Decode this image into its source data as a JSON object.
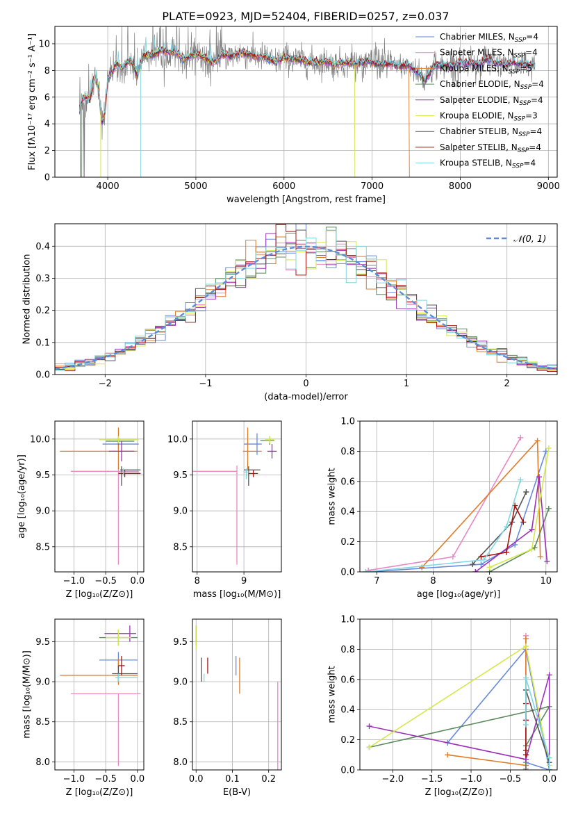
{
  "figure": {
    "title": "PLATE=0923, MJD=52404, FIBERID=0257, z=0.037"
  },
  "colors": {
    "Chabrier MILES": "#6688dd",
    "Salpeter MILES": "#e888c4",
    "Kroupa MILES": "#e07b28",
    "Chabrier ELODIE": "#5b8a5b",
    "Salpeter ELODIE": "#9b30b8",
    "Kroupa ELODIE": "#d4e84a",
    "Chabrier STELIB": "#555555",
    "Salpeter STELIB": "#aa1111",
    "Kroupa STELIB": "#7fd8e0",
    "data": "#808080",
    "normal_curve": "#5b8dd6"
  },
  "chart_data": [
    {
      "type": "line",
      "id": "spectrum",
      "title": "PLATE=0923, MJD=52404, FIBERID=0257, z=0.037",
      "xlabel": "wavelength [Angstrom, rest frame]",
      "ylabel": "Flux [fλ10⁻¹⁷ erg cm⁻² s⁻¹ A⁻¹]",
      "xlim": [
        3400,
        9100
      ],
      "ylim": [
        0,
        11.3
      ],
      "xticks": [
        4000,
        5000,
        6000,
        7000,
        8000,
        9000
      ],
      "yticks": [
        0,
        2,
        4,
        6,
        8,
        10
      ],
      "legend_position": "top-right",
      "legend": [
        {
          "label": "Chabrier MILES, N",
          "sub": "SSP",
          "tail": "=4"
        },
        {
          "label": "Salpeter MILES, N",
          "sub": "SSP",
          "tail": "=4"
        },
        {
          "label": "Kroupa MILES, N",
          "sub": "SSP",
          "tail": "=5"
        },
        {
          "label": "Chabrier ELODIE, N",
          "sub": "SSP",
          "tail": "=4"
        },
        {
          "label": "Salpeter ELODIE, N",
          "sub": "SSP",
          "tail": "=4"
        },
        {
          "label": "Kroupa ELODIE, N",
          "sub": "SSP",
          "tail": "=3"
        },
        {
          "label": "Chabrier STELIB, N",
          "sub": "SSP",
          "tail": "=4"
        },
        {
          "label": "Salpeter STELIB, N",
          "sub": "SSP",
          "tail": "=4"
        },
        {
          "label": "Kroupa STELIB, N",
          "sub": "SSP",
          "tail": "=4"
        }
      ],
      "data_spectrum": {
        "x": [
          3680,
          3720,
          3800,
          3850,
          3900,
          3933,
          3968,
          4000,
          4050,
          4100,
          4150,
          4200,
          4250,
          4300,
          4340,
          4400,
          4500,
          4600,
          4700,
          4800,
          4861,
          4900,
          5000,
          5100,
          5175,
          5250,
          5300,
          5400,
          5500,
          5600,
          5700,
          5800,
          5893,
          6000,
          6100,
          6200,
          6300,
          6400,
          6500,
          6563,
          6600,
          6700,
          6800,
          6900,
          7000,
          7100,
          7200,
          7300,
          7400,
          7500,
          7600,
          7700,
          7800,
          7900,
          8000,
          8100,
          8200,
          8300,
          8400,
          8500,
          8600,
          8700,
          8800,
          8850
        ],
        "y": [
          5.0,
          6.0,
          5.8,
          7.6,
          6.5,
          4.0,
          4.8,
          7.4,
          7.8,
          8.6,
          8.2,
          8.4,
          8.8,
          8.2,
          7.6,
          9.2,
          9.1,
          9.5,
          9.4,
          9.3,
          8.8,
          9.0,
          9.2,
          9.0,
          8.6,
          8.8,
          9.2,
          9.1,
          9.3,
          9.2,
          9.0,
          9.0,
          8.6,
          9.0,
          8.8,
          8.8,
          8.6,
          8.6,
          8.7,
          8.4,
          8.5,
          8.6,
          8.5,
          8.6,
          8.6,
          8.4,
          8.5,
          8.3,
          8.4,
          8.0,
          7.2,
          8.3,
          8.4,
          8.3,
          8.6,
          8.6,
          8.4,
          8.8,
          8.6,
          8.4,
          8.6,
          8.5,
          8.4,
          8.3
        ]
      },
      "model_drops": {
        "Kroupa MILES": 7420,
        "Kroupa ELODIE": 6800
      }
    },
    {
      "type": "line",
      "id": "residuals",
      "xlabel": "(data-model)/error",
      "ylabel": "Normed distribution",
      "xlim": [
        -2.5,
        2.5
      ],
      "ylim": [
        0,
        0.47
      ],
      "xticks": [
        -2,
        -1,
        0,
        1,
        2
      ],
      "yticks": [
        0.0,
        0.1,
        0.2,
        0.3,
        0.4
      ],
      "legend_position": "top-right",
      "legend": [
        "𝒩(0, 1)"
      ],
      "normal_curve": {
        "mean": 0,
        "sigma": 1
      },
      "bin_width": 0.1
    },
    {
      "type": "scatter",
      "id": "age-vs-Z",
      "xlabel": "Z [log₁₀(Z/Z⊙)]",
      "ylabel": "age  [log₁₀(age/yr)]",
      "xlim": [
        -1.3,
        0.1
      ],
      "ylim": [
        8.15,
        10.25
      ],
      "xticks": [
        -1.0,
        -0.5,
        0.0
      ],
      "yticks": [
        8.5,
        9.0,
        9.5,
        10.0
      ],
      "points": [
        {
          "series": "Chabrier MILES",
          "x": -0.3,
          "y": 9.93,
          "xerr": [
            0.25,
            0.32
          ],
          "yerr": [
            0.07,
            0.07
          ]
        },
        {
          "series": "Salpeter MILES",
          "x": -0.3,
          "y": 9.55,
          "xerr": [
            0.75,
            0.32
          ],
          "yerr": [
            1.3,
            0.05
          ]
        },
        {
          "series": "Kroupa MILES",
          "x": -0.3,
          "y": 9.83,
          "xerr": [
            0.92,
            0.3
          ],
          "yerr": [
            0.25,
            0.33
          ]
        },
        {
          "series": "Chabrier ELODIE",
          "x": -0.3,
          "y": 9.97,
          "xerr": [
            0.2,
            0.25
          ],
          "yerr": [
            0.05,
            0.04
          ]
        },
        {
          "series": "Salpeter ELODIE",
          "x": -0.25,
          "y": 9.83,
          "xerr": [
            0.2,
            0.2
          ],
          "yerr": [
            0.14,
            0.14
          ]
        },
        {
          "series": "Kroupa ELODIE",
          "x": -0.3,
          "y": 9.99,
          "xerr": [
            0.3,
            0.32
          ],
          "yerr": [
            0.05,
            0.05
          ]
        },
        {
          "series": "Chabrier STELIB",
          "x": -0.25,
          "y": 9.57,
          "xerr": [
            0.02,
            0.3
          ],
          "yerr": [
            0.22,
            0.05
          ]
        },
        {
          "series": "Salpeter STELIB",
          "x": -0.2,
          "y": 9.52,
          "xerr": [
            0.1,
            0.25
          ],
          "yerr": [
            0.05,
            0.05
          ]
        },
        {
          "series": "Kroupa STELIB",
          "x": -0.22,
          "y": 9.54,
          "xerr": [
            0.08,
            0.25
          ],
          "yerr": [
            0.05,
            0.05
          ]
        }
      ]
    },
    {
      "type": "scatter",
      "id": "age-vs-mass",
      "xlabel": "mass [log₁₀(M/M⊙)]",
      "ylabel": "",
      "xlim": [
        7.9,
        9.8
      ],
      "ylim": [
        8.15,
        10.25
      ],
      "xticks": [
        8,
        9
      ],
      "yticks": [
        8.5,
        9.0,
        9.5,
        10.0
      ],
      "points": [
        {
          "series": "Chabrier MILES",
          "x": 9.28,
          "y": 9.93,
          "xerr": [
            0.28,
            0.1
          ],
          "yerr": [
            0.15,
            0.15
          ]
        },
        {
          "series": "Salpeter MILES",
          "x": 8.85,
          "y": 9.55,
          "xerr": [
            0.95,
            0.0
          ],
          "yerr": [
            1.3,
            0.08
          ]
        },
        {
          "series": "Kroupa MILES",
          "x": 9.08,
          "y": 9.83,
          "xerr": [
            0.1,
            0.3
          ],
          "yerr": [
            0.25,
            0.33
          ]
        },
        {
          "series": "Chabrier ELODIE",
          "x": 9.55,
          "y": 9.98,
          "xerr": [
            0.2,
            0.1
          ],
          "yerr": [
            0.06,
            0.06
          ]
        },
        {
          "series": "Salpeter ELODIE",
          "x": 9.6,
          "y": 9.83,
          "xerr": [
            0.1,
            0.1
          ],
          "yerr": [
            0.1,
            0.1
          ]
        },
        {
          "series": "Kroupa ELODIE",
          "x": 9.55,
          "y": 9.99,
          "xerr": [
            0.1,
            0.1
          ],
          "yerr": [
            0.05,
            0.05
          ]
        },
        {
          "series": "Chabrier STELIB",
          "x": 9.1,
          "y": 9.57,
          "xerr": [
            0.1,
            0.25
          ],
          "yerr": [
            0.22,
            0.05
          ]
        },
        {
          "series": "Salpeter STELIB",
          "x": 9.2,
          "y": 9.52,
          "xerr": [
            0.1,
            0.1
          ],
          "yerr": [
            0.05,
            0.05
          ]
        },
        {
          "series": "Kroupa STELIB",
          "x": 9.05,
          "y": 9.54,
          "xerr": [
            0.05,
            0.05
          ],
          "yerr": [
            0.1,
            0.05
          ]
        }
      ]
    },
    {
      "type": "line",
      "id": "mass-weight-vs-age",
      "xlabel": "age  [log₁₀(age/yr)]",
      "ylabel": "mass weight",
      "xlim": [
        6.7,
        10.2
      ],
      "ylim": [
        0,
        1.0
      ],
      "xticks": [
        7,
        8,
        9,
        10
      ],
      "yticks": [
        0.0,
        0.2,
        0.4,
        0.6,
        0.8,
        1.0
      ],
      "series": [
        {
          "name": "Chabrier MILES",
          "x": [
            6.85,
            8.85,
            9.45,
            10.0
          ],
          "y": [
            0.0,
            0.05,
            0.18,
            0.8
          ]
        },
        {
          "name": "Salpeter MILES",
          "x": [
            6.85,
            8.35,
            9.55
          ],
          "y": [
            0.01,
            0.1,
            0.89
          ]
        },
        {
          "name": "Kroupa MILES",
          "x": [
            7.8,
            9.85,
            9.9
          ],
          "y": [
            0.03,
            0.87,
            0.1
          ]
        },
        {
          "name": "Chabrier ELODIE",
          "x": [
            9.0,
            9.8,
            10.05
          ],
          "y": [
            0.0,
            0.16,
            0.42
          ]
        },
        {
          "name": "Salpeter ELODIE",
          "x": [
            8.75,
            9.75,
            9.88,
            10.02
          ],
          "y": [
            0.0,
            0.28,
            0.63,
            0.07
          ]
        },
        {
          "name": "Kroupa ELODIE",
          "x": [
            9.0,
            9.75,
            10.05
          ],
          "y": [
            0.03,
            0.15,
            0.82
          ]
        },
        {
          "name": "Chabrier STELIB",
          "x": [
            8.7,
            9.4,
            9.65
          ],
          "y": [
            0.05,
            0.33,
            0.53
          ]
        },
        {
          "name": "Salpeter STELIB",
          "x": [
            8.85,
            9.3,
            9.45,
            9.6
          ],
          "y": [
            0.1,
            0.13,
            0.44,
            0.33
          ]
        },
        {
          "name": "Kroupa STELIB",
          "x": [
            6.8,
            8.9,
            9.3,
            9.55
          ],
          "y": [
            0.0,
            0.08,
            0.3,
            0.61
          ]
        }
      ]
    },
    {
      "type": "scatter",
      "id": "mass-vs-Z",
      "xlabel": "Z [log₁₀(Z/Z⊙)]",
      "ylabel": "mass [log₁₀(M/M⊙)]",
      "xlim": [
        -1.3,
        0.1
      ],
      "ylim": [
        7.9,
        9.78
      ],
      "xticks": [
        -1.0,
        -0.5,
        0.0
      ],
      "yticks": [
        8.0,
        8.5,
        9.0,
        9.5
      ],
      "points": [
        {
          "series": "Chabrier MILES",
          "x": -0.3,
          "y": 9.27,
          "xerr": [
            0.3,
            0.3
          ],
          "yerr": [
            0.1,
            0.1
          ]
        },
        {
          "series": "Salpeter MILES",
          "x": -0.3,
          "y": 8.85,
          "xerr": [
            0.75,
            0.35
          ],
          "yerr": [
            0.9,
            0.0
          ]
        },
        {
          "series": "Kroupa MILES",
          "x": -0.3,
          "y": 9.08,
          "xerr": [
            0.92,
            0.3
          ],
          "yerr": [
            0.12,
            0.2
          ]
        },
        {
          "series": "Chabrier ELODIE",
          "x": -0.3,
          "y": 9.55,
          "xerr": [
            0.3,
            0.3
          ],
          "yerr": [
            0.1,
            0.1
          ]
        },
        {
          "series": "Salpeter ELODIE",
          "x": -0.12,
          "y": 9.6,
          "xerr": [
            0.4,
            0.1
          ],
          "yerr": [
            0.1,
            0.1
          ]
        },
        {
          "series": "Kroupa ELODIE",
          "x": -0.3,
          "y": 9.55,
          "xerr": [
            0.2,
            0.2
          ],
          "yerr": [
            0.1,
            0.1
          ]
        },
        {
          "series": "Chabrier STELIB",
          "x": -0.3,
          "y": 9.1,
          "xerr": [
            0.1,
            0.3
          ],
          "yerr": [
            0.1,
            0.1
          ]
        },
        {
          "series": "Salpeter STELIB",
          "x": -0.25,
          "y": 9.2,
          "xerr": [
            0.05,
            0.05
          ],
          "yerr": [
            0.12,
            0.12
          ]
        },
        {
          "series": "Kroupa STELIB",
          "x": -0.3,
          "y": 9.05,
          "xerr": [
            0.05,
            0.3
          ],
          "yerr": [
            0.05,
            0.05
          ]
        }
      ]
    },
    {
      "type": "scatter",
      "id": "mass-vs-EBV",
      "xlabel": "E(B-V)",
      "ylabel": "",
      "xlim": [
        -0.01,
        0.235
      ],
      "ylim": [
        7.9,
        9.78
      ],
      "xticks": [
        0.0,
        0.1,
        0.2
      ],
      "yticks": [
        8.0,
        8.5,
        9.0,
        9.5
      ],
      "points": [
        {
          "series": "Chabrier MILES",
          "x": 0.11,
          "y": 9.2,
          "xerr": [
            0,
            0
          ],
          "yerr": [
            0.12,
            0.12
          ]
        },
        {
          "series": "Salpeter MILES",
          "x": 0.225,
          "y": 8.5,
          "xerr": [
            0,
            0
          ],
          "yerr": [
            0.6,
            0.5
          ]
        },
        {
          "series": "Kroupa MILES",
          "x": 0.12,
          "y": 9.1,
          "xerr": [
            0,
            0
          ],
          "yerr": [
            0.25,
            0.2
          ]
        },
        {
          "series": "Chabrier ELODIE",
          "x": 0.0,
          "y": 9.55,
          "xerr": [
            0,
            0
          ],
          "yerr": [
            0.1,
            0.1
          ]
        },
        {
          "series": "Salpeter ELODIE",
          "x": 0.0,
          "y": 9.6,
          "xerr": [
            0,
            0
          ],
          "yerr": [
            0.1,
            0.1
          ]
        },
        {
          "series": "Kroupa ELODIE",
          "x": 0.0,
          "y": 9.55,
          "xerr": [
            0,
            0
          ],
          "yerr": [
            0.15,
            0.15
          ]
        },
        {
          "series": "Chabrier STELIB",
          "x": 0.015,
          "y": 9.15,
          "xerr": [
            0,
            0
          ],
          "yerr": [
            0.15,
            0.15
          ]
        },
        {
          "series": "Salpeter STELIB",
          "x": 0.032,
          "y": 9.2,
          "xerr": [
            0,
            0
          ],
          "yerr": [
            0.1,
            0.1
          ]
        },
        {
          "series": "Kroupa STELIB",
          "x": 0.022,
          "y": 9.05,
          "xerr": [
            0,
            0
          ],
          "yerr": [
            0.05,
            0.05
          ]
        }
      ]
    },
    {
      "type": "line",
      "id": "mass-weight-vs-Z",
      "xlabel": "Z [log₁₀(Z/Z⊙)]",
      "ylabel": "mass weight",
      "xlim": [
        -2.42,
        0.1
      ],
      "ylim": [
        0,
        1.0
      ],
      "xticks": [
        -2.0,
        -1.5,
        -1.0,
        -0.5,
        0.0
      ],
      "yticks": [
        0.0,
        0.2,
        0.4,
        0.6,
        0.8,
        1.0
      ],
      "series": [
        {
          "name": "Chabrier MILES",
          "x": [
            -1.3,
            -0.3,
            0.0,
            -0.3
          ],
          "y": [
            0.18,
            0.8,
            0.0,
            0.05
          ]
        },
        {
          "name": "Salpeter MILES",
          "x": [
            -0.3,
            -0.3,
            -0.3
          ],
          "y": [
            0.89,
            0.1,
            0.01
          ]
        },
        {
          "name": "Kroupa MILES",
          "x": [
            -1.3,
            -0.3,
            -0.3
          ],
          "y": [
            0.1,
            0.03,
            0.87
          ]
        },
        {
          "name": "Chabrier ELODIE",
          "x": [
            -2.3,
            0.0,
            -0.3,
            -0.3
          ],
          "y": [
            0.15,
            0.42,
            0.16,
            0.0
          ]
        },
        {
          "name": "Salpeter ELODIE",
          "x": [
            -2.3,
            -0.3,
            0.0,
            0.0
          ],
          "y": [
            0.29,
            0.07,
            0.63,
            0.0
          ]
        },
        {
          "name": "Kroupa ELODIE",
          "x": [
            -2.3,
            -0.3,
            0.0
          ],
          "y": [
            0.15,
            0.82,
            0.03
          ]
        },
        {
          "name": "Chabrier STELIB",
          "x": [
            -0.3,
            -0.3,
            0.0,
            0.0
          ],
          "y": [
            0.33,
            0.53,
            0.05,
            0.0
          ]
        },
        {
          "name": "Salpeter STELIB",
          "x": [
            -0.3,
            -0.3,
            -0.3,
            -0.3
          ],
          "y": [
            0.1,
            0.13,
            0.44,
            0.33
          ]
        },
        {
          "name": "Kroupa STELIB",
          "x": [
            -0.3,
            -0.3,
            0.0,
            0.0
          ],
          "y": [
            0.3,
            0.61,
            0.08,
            0.0
          ]
        }
      ]
    }
  ]
}
